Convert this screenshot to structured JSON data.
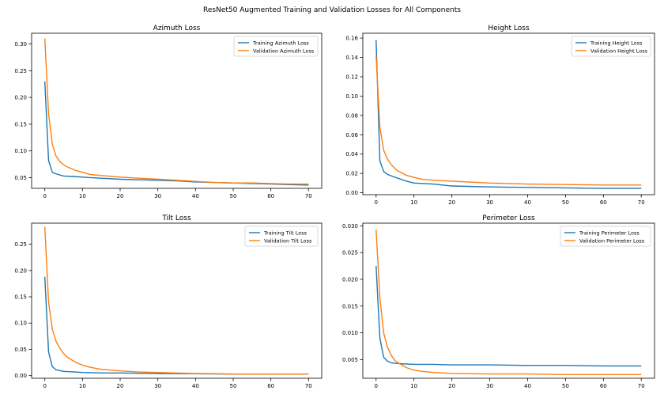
{
  "figure": {
    "suptitle": "ResNet50 Augmented Training and Validation Losses for All Components"
  },
  "colors": {
    "training": "#1f77b4",
    "validation": "#ff7f0e"
  },
  "chart_data": [
    {
      "type": "line",
      "title": "Azimuth Loss",
      "xlabel": "",
      "ylabel": "",
      "xlim": [
        0,
        70
      ],
      "ylim": [
        0.03,
        0.32
      ],
      "xticks": [
        0,
        10,
        20,
        30,
        40,
        50,
        60,
        70
      ],
      "yticks": [
        0.05,
        0.1,
        0.15,
        0.2,
        0.25,
        0.3
      ],
      "ytick_labels": [
        "0.05",
        "0.10",
        "0.15",
        "0.20",
        "0.25",
        "0.30"
      ],
      "legend": "top-right",
      "grid": false,
      "series": [
        {
          "name": "Training Azimuth Loss",
          "color": "#1f77b4",
          "x": [
            0,
            1,
            2,
            3,
            5,
            8,
            10,
            12,
            15,
            20,
            25,
            30,
            35,
            40,
            45,
            50,
            55,
            60,
            65,
            70
          ],
          "y": [
            0.23,
            0.082,
            0.06,
            0.057,
            0.053,
            0.052,
            0.051,
            0.05,
            0.049,
            0.047,
            0.046,
            0.045,
            0.044,
            0.042,
            0.041,
            0.04,
            0.039,
            0.038,
            0.037,
            0.036
          ]
        },
        {
          "name": "Validation Azimuth Loss",
          "color": "#ff7f0e",
          "x": [
            0,
            1,
            2,
            3,
            4,
            5,
            6,
            8,
            10,
            12,
            15,
            20,
            25,
            30,
            35,
            40,
            45,
            50,
            55,
            60,
            65,
            70
          ],
          "y": [
            0.31,
            0.17,
            0.112,
            0.09,
            0.08,
            0.074,
            0.07,
            0.064,
            0.06,
            0.056,
            0.054,
            0.051,
            0.049,
            0.047,
            0.045,
            0.043,
            0.041,
            0.04,
            0.04,
            0.039,
            0.038,
            0.038
          ]
        }
      ]
    },
    {
      "type": "line",
      "title": "Height Loss",
      "xlabel": "",
      "ylabel": "",
      "xlim": [
        0,
        70
      ],
      "ylim": [
        -0.002,
        0.165
      ],
      "xticks": [
        0,
        10,
        20,
        30,
        40,
        50,
        60,
        70
      ],
      "yticks": [
        0.0,
        0.02,
        0.04,
        0.06,
        0.08,
        0.1,
        0.12,
        0.14,
        0.16
      ],
      "ytick_labels": [
        "0.00",
        "0.02",
        "0.04",
        "0.06",
        "0.08",
        "0.10",
        "0.12",
        "0.14",
        "0.16"
      ],
      "legend": "top-right",
      "grid": false,
      "series": [
        {
          "name": "Training Height Loss",
          "color": "#1f77b4",
          "x": [
            0,
            1,
            2,
            3,
            5,
            8,
            10,
            15,
            20,
            25,
            30,
            40,
            50,
            60,
            70
          ],
          "y": [
            0.158,
            0.033,
            0.022,
            0.019,
            0.016,
            0.012,
            0.01,
            0.009,
            0.007,
            0.0065,
            0.006,
            0.0055,
            0.005,
            0.0045,
            0.0045
          ]
        },
        {
          "name": "Validation Height Loss",
          "color": "#ff7f0e",
          "x": [
            0,
            1,
            2,
            3,
            4,
            5,
            6,
            8,
            10,
            12,
            15,
            20,
            25,
            30,
            35,
            40,
            50,
            60,
            70
          ],
          "y": [
            0.142,
            0.068,
            0.044,
            0.035,
            0.029,
            0.025,
            0.022,
            0.018,
            0.016,
            0.014,
            0.013,
            0.012,
            0.011,
            0.01,
            0.0095,
            0.009,
            0.0085,
            0.008,
            0.008
          ]
        }
      ]
    },
    {
      "type": "line",
      "title": "Tilt Loss",
      "xlabel": "",
      "ylabel": "",
      "xlim": [
        0,
        70
      ],
      "ylim": [
        -0.005,
        0.29
      ],
      "xticks": [
        0,
        10,
        20,
        30,
        40,
        50,
        60,
        70
      ],
      "yticks": [
        0.0,
        0.05,
        0.1,
        0.15,
        0.2,
        0.25
      ],
      "ytick_labels": [
        "0.00",
        "0.05",
        "0.10",
        "0.15",
        "0.20",
        "0.25"
      ],
      "legend": "top-right",
      "grid": false,
      "series": [
        {
          "name": "Training Tilt Loss",
          "color": "#1f77b4",
          "x": [
            0,
            1,
            2,
            3,
            5,
            8,
            10,
            15,
            20,
            30,
            40,
            50,
            60,
            70
          ],
          "y": [
            0.188,
            0.045,
            0.017,
            0.011,
            0.008,
            0.007,
            0.006,
            0.005,
            0.005,
            0.004,
            0.0035,
            0.003,
            0.003,
            0.003
          ]
        },
        {
          "name": "Validation Tilt Loss",
          "color": "#ff7f0e",
          "x": [
            0,
            1,
            2,
            3,
            4,
            5,
            6,
            8,
            10,
            12,
            15,
            20,
            25,
            30,
            40,
            50,
            60,
            70
          ],
          "y": [
            0.283,
            0.14,
            0.088,
            0.065,
            0.052,
            0.042,
            0.035,
            0.026,
            0.02,
            0.016,
            0.012,
            0.009,
            0.007,
            0.006,
            0.004,
            0.003,
            0.003,
            0.003
          ]
        }
      ]
    },
    {
      "type": "line",
      "title": "Perimeter Loss",
      "xlabel": "",
      "ylabel": "",
      "xlim": [
        0,
        70
      ],
      "ylim": [
        0.0015,
        0.0305
      ],
      "xticks": [
        0,
        10,
        20,
        30,
        40,
        50,
        60,
        70
      ],
      "yticks": [
        0.005,
        0.01,
        0.015,
        0.02,
        0.025,
        0.03
      ],
      "ytick_labels": [
        "0.005",
        "0.010",
        "0.015",
        "0.020",
        "0.025",
        "0.030"
      ],
      "legend": "top-right",
      "grid": false,
      "series": [
        {
          "name": "Training Perimeter Loss",
          "color": "#1f77b4",
          "x": [
            0,
            1,
            2,
            3,
            4,
            5,
            7,
            10,
            15,
            20,
            30,
            40,
            50,
            60,
            70
          ],
          "y": [
            0.0225,
            0.009,
            0.0054,
            0.0047,
            0.0044,
            0.0043,
            0.0042,
            0.0041,
            0.0041,
            0.004,
            0.004,
            0.0039,
            0.0039,
            0.0038,
            0.0038
          ]
        },
        {
          "name": "Validation Perimeter Loss",
          "color": "#ff7f0e",
          "x": [
            0,
            1,
            2,
            3,
            4,
            5,
            6,
            7,
            8,
            10,
            12,
            15,
            20,
            30,
            40,
            50,
            60,
            70
          ],
          "y": [
            0.0293,
            0.0165,
            0.01,
            0.0073,
            0.0058,
            0.0048,
            0.0043,
            0.0039,
            0.0035,
            0.003,
            0.0028,
            0.0026,
            0.0024,
            0.0023,
            0.0023,
            0.0022,
            0.0022,
            0.0022
          ]
        }
      ]
    }
  ]
}
